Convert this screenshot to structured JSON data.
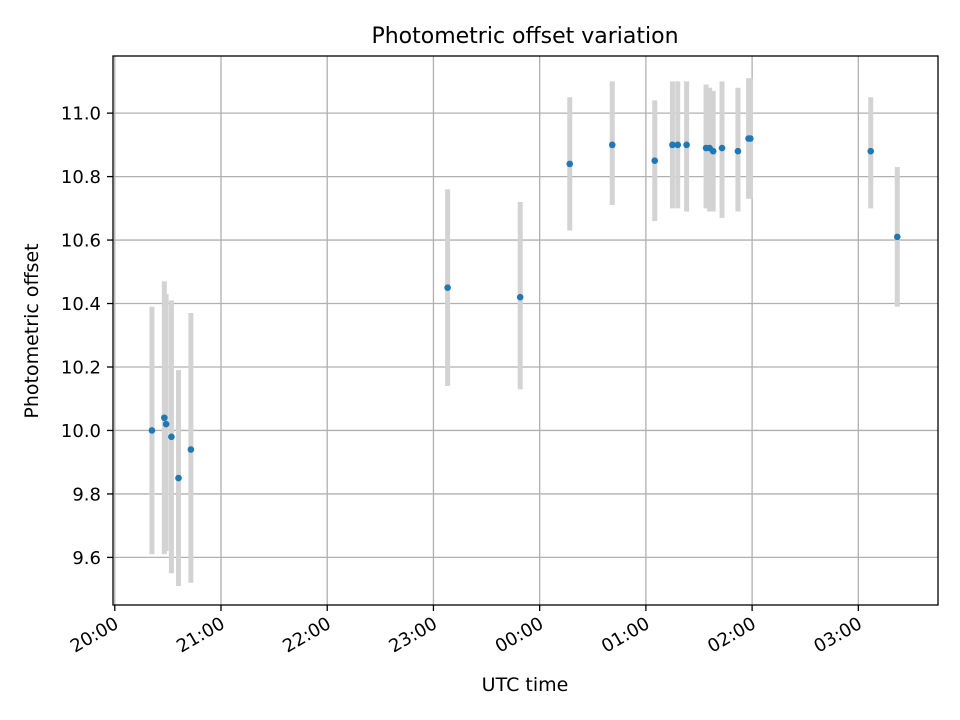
{
  "chart_data": {
    "type": "scatter",
    "title": "Photometric offset variation",
    "xlabel": "UTC time",
    "ylabel": "Photometric offset",
    "x_axis": "time (hours)",
    "xlim": [
      "19:59",
      "03:45"
    ],
    "ylim": [
      9.45,
      11.18
    ],
    "x_ticks": [
      "20:00",
      "21:00",
      "22:00",
      "23:00",
      "00:00",
      "01:00",
      "02:00",
      "03:00"
    ],
    "y_ticks": [
      9.6,
      9.8,
      10.0,
      10.2,
      10.4,
      10.6,
      10.8,
      11.0
    ],
    "grid": true,
    "marker_color": "#1f77b4",
    "errorbar_color": "#d3d3d3",
    "points": [
      {
        "time": "20:21",
        "value": 10.0,
        "lo": 9.61,
        "hi": 10.39
      },
      {
        "time": "20:28",
        "value": 10.04,
        "lo": 9.61,
        "hi": 10.47
      },
      {
        "time": "20:29",
        "value": 10.02,
        "lo": 9.62,
        "hi": 10.43
      },
      {
        "time": "20:32",
        "value": 9.98,
        "lo": 9.55,
        "hi": 10.41
      },
      {
        "time": "20:36",
        "value": 9.85,
        "lo": 9.51,
        "hi": 10.19
      },
      {
        "time": "20:43",
        "value": 9.94,
        "lo": 9.52,
        "hi": 10.37
      },
      {
        "time": "23:08",
        "value": 10.45,
        "lo": 10.14,
        "hi": 10.76
      },
      {
        "time": "23:49",
        "value": 10.42,
        "lo": 10.13,
        "hi": 10.72
      },
      {
        "time": "00:17",
        "value": 10.84,
        "lo": 10.63,
        "hi": 11.05
      },
      {
        "time": "00:41",
        "value": 10.9,
        "lo": 10.71,
        "hi": 11.1
      },
      {
        "time": "01:05",
        "value": 10.85,
        "lo": 10.66,
        "hi": 11.04
      },
      {
        "time": "01:15",
        "value": 10.9,
        "lo": 10.7,
        "hi": 11.1
      },
      {
        "time": "01:18",
        "value": 10.9,
        "lo": 10.7,
        "hi": 11.1
      },
      {
        "time": "01:23",
        "value": 10.9,
        "lo": 10.69,
        "hi": 11.1
      },
      {
        "time": "01:34",
        "value": 10.89,
        "lo": 10.7,
        "hi": 11.09
      },
      {
        "time": "01:36",
        "value": 10.89,
        "lo": 10.69,
        "hi": 11.08
      },
      {
        "time": "01:38",
        "value": 10.88,
        "lo": 10.69,
        "hi": 11.07
      },
      {
        "time": "01:43",
        "value": 10.89,
        "lo": 10.67,
        "hi": 11.1
      },
      {
        "time": "01:52",
        "value": 10.88,
        "lo": 10.69,
        "hi": 11.08
      },
      {
        "time": "01:58",
        "value": 10.92,
        "lo": 10.73,
        "hi": 11.11
      },
      {
        "time": "01:59",
        "value": 10.92,
        "lo": 10.73,
        "hi": 11.11
      },
      {
        "time": "03:07",
        "value": 10.88,
        "lo": 10.7,
        "hi": 11.05
      },
      {
        "time": "03:22",
        "value": 10.61,
        "lo": 10.39,
        "hi": 10.83
      }
    ]
  }
}
